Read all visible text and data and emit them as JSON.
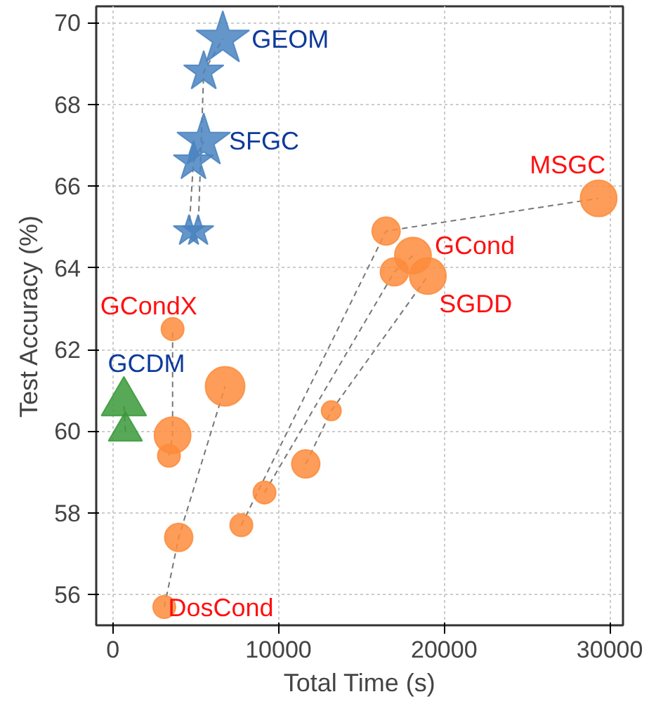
{
  "chart_data": {
    "type": "bubble",
    "xlabel": "Total Time (s)",
    "ylabel": "Test Accuracy (%)",
    "xlim": [
      -1000,
      30800
    ],
    "ylim": [
      55.25,
      70.4
    ],
    "xticks": [
      0,
      10000,
      20000,
      30000
    ],
    "yticks": [
      56,
      58,
      60,
      62,
      64,
      66,
      68,
      70
    ],
    "grid": true,
    "line_style": "dashed",
    "series": [
      {
        "name": "GEOM",
        "color": "#4a84c0",
        "marker": "star",
        "x": [
          5150,
          5490,
          6640
        ],
        "values": [
          64.9,
          68.8,
          69.6
        ],
        "sizes": [
          0.25,
          0.41,
          0.73
        ]
      },
      {
        "name": "SFGC",
        "color": "#4a84c0",
        "marker": "star",
        "x": [
          4600,
          4870,
          5490
        ],
        "values": [
          64.9,
          66.6,
          67.1
        ],
        "sizes": [
          0.25,
          0.41,
          0.73
        ]
      },
      {
        "name": "GCDM",
        "color": "#3a9a3a",
        "marker": "triangle",
        "x": [
          760,
          670
        ],
        "values": [
          60.0,
          60.7
        ],
        "sizes": [
          0.41,
          0.73
        ]
      },
      {
        "name": "GCondX",
        "color": "#fd8c3c",
        "marker": "circle",
        "x": [
          3390,
          3610,
          3610
        ],
        "values": [
          59.4,
          59.9,
          62.5
        ],
        "sizes": [
          0.33,
          0.86,
          0.33
        ]
      },
      {
        "name": "DosCond",
        "color": "#fd8c3c",
        "marker": "circle",
        "x": [
          3110,
          3980,
          6780
        ],
        "values": [
          55.7,
          57.4,
          61.1
        ],
        "sizes": [
          0.33,
          0.51,
          1
        ]
      },
      {
        "name": "MSGC",
        "color": "#fd8c3c",
        "marker": "circle",
        "x": [
          7760,
          16500,
          29330
        ],
        "values": [
          57.7,
          64.9,
          65.7
        ],
        "sizes": [
          0.33,
          0.51,
          0.86
        ]
      },
      {
        "name": "GCond",
        "color": "#fd8c3c",
        "marker": "circle",
        "x": [
          9160,
          17000,
          18120
        ],
        "values": [
          58.5,
          63.9,
          64.3
        ],
        "sizes": [
          0.33,
          0.51,
          0.86
        ]
      },
      {
        "name": "SGDD",
        "color": "#fd8c3c",
        "marker": "circle",
        "x": [
          11650,
          13190,
          19020
        ],
        "values": [
          59.2,
          60.5,
          63.8
        ],
        "sizes": [
          0.51,
          0.25,
          0.86
        ]
      }
    ]
  }
}
